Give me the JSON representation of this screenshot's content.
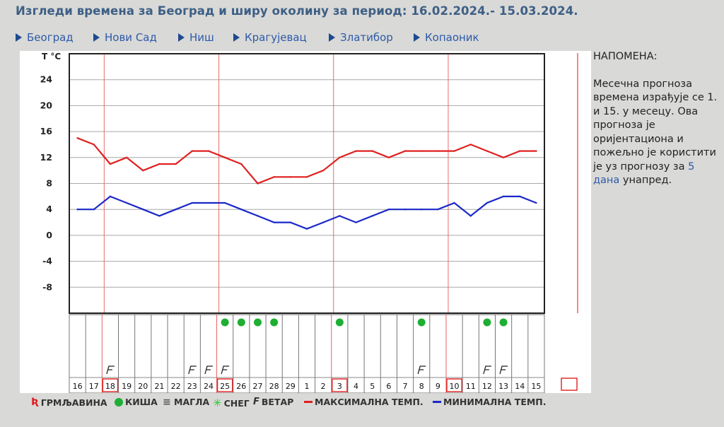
{
  "page": {
    "title": "Изгледи времена за Београд и ширу околину за период: 16.02.2024.- 15.03.2024."
  },
  "nav": [
    {
      "label": "Београд"
    },
    {
      "label": "Нови Сад"
    },
    {
      "label": "Ниш"
    },
    {
      "label": "Крагујевац"
    },
    {
      "label": "Златибор"
    },
    {
      "label": "Копаоник"
    }
  ],
  "note": {
    "heading": "НАПОМЕНА:",
    "body": "Месечна прогноза времена израђује се 1. и 15. у месецу. Ова прогноза је оријентациона и пожељно је користити је уз прогнозу за",
    "link": "5 дана",
    "tail": "унапред."
  },
  "legend": {
    "storm": "ГРМЉАВИНА",
    "rain": "КИША",
    "fog": "МАГЛА",
    "snow": "СНЕГ",
    "wind": "ВЕТАР",
    "max": "МАКСИМАЛНА ТЕМП.",
    "min": "МИНИМАЛНА ТЕМП."
  },
  "chart_data": {
    "type": "line",
    "ylabel": "T °C",
    "y_ticks": [
      "24",
      "20",
      "16",
      "12",
      "8",
      "4",
      "0",
      "-4",
      "-8"
    ],
    "ylim": [
      -12,
      28
    ],
    "days": [
      "16",
      "17",
      "18",
      "19",
      "20",
      "21",
      "22",
      "23",
      "24",
      "25",
      "26",
      "27",
      "28",
      "29",
      "1",
      "2",
      "3",
      "4",
      "5",
      "6",
      "7",
      "8",
      "9",
      "10",
      "11",
      "12",
      "13",
      "14",
      "15"
    ],
    "series": [
      {
        "name": "МАКСИМАЛНА ТЕМП.",
        "color": "#e02020",
        "values": [
          15,
          14,
          11,
          12,
          10,
          11,
          11,
          13,
          13,
          12,
          11,
          8,
          9,
          9,
          9,
          10,
          12,
          13,
          13,
          12,
          13,
          13,
          13,
          13,
          14,
          13,
          12,
          13,
          13
        ]
      },
      {
        "name": "МИНИМАЛНА ТЕМП.",
        "color": "#1a28c8",
        "values": [
          4,
          4,
          6,
          5,
          4,
          3,
          4,
          5,
          5,
          5,
          4,
          3,
          2,
          2,
          1,
          2,
          3,
          2,
          3,
          4,
          4,
          4,
          4,
          5,
          3,
          5,
          6,
          6,
          5
        ]
      }
    ],
    "rain_days": [
      "25",
      "26",
      "27",
      "28",
      "3",
      "8",
      "12",
      "13"
    ],
    "wind_days": [
      "18",
      "23",
      "24",
      "25",
      "8",
      "12",
      "13"
    ],
    "highlighted_days": [
      "18",
      "25",
      "3",
      "10"
    ],
    "week_markers": [
      "18",
      "25",
      "3",
      "10"
    ]
  }
}
